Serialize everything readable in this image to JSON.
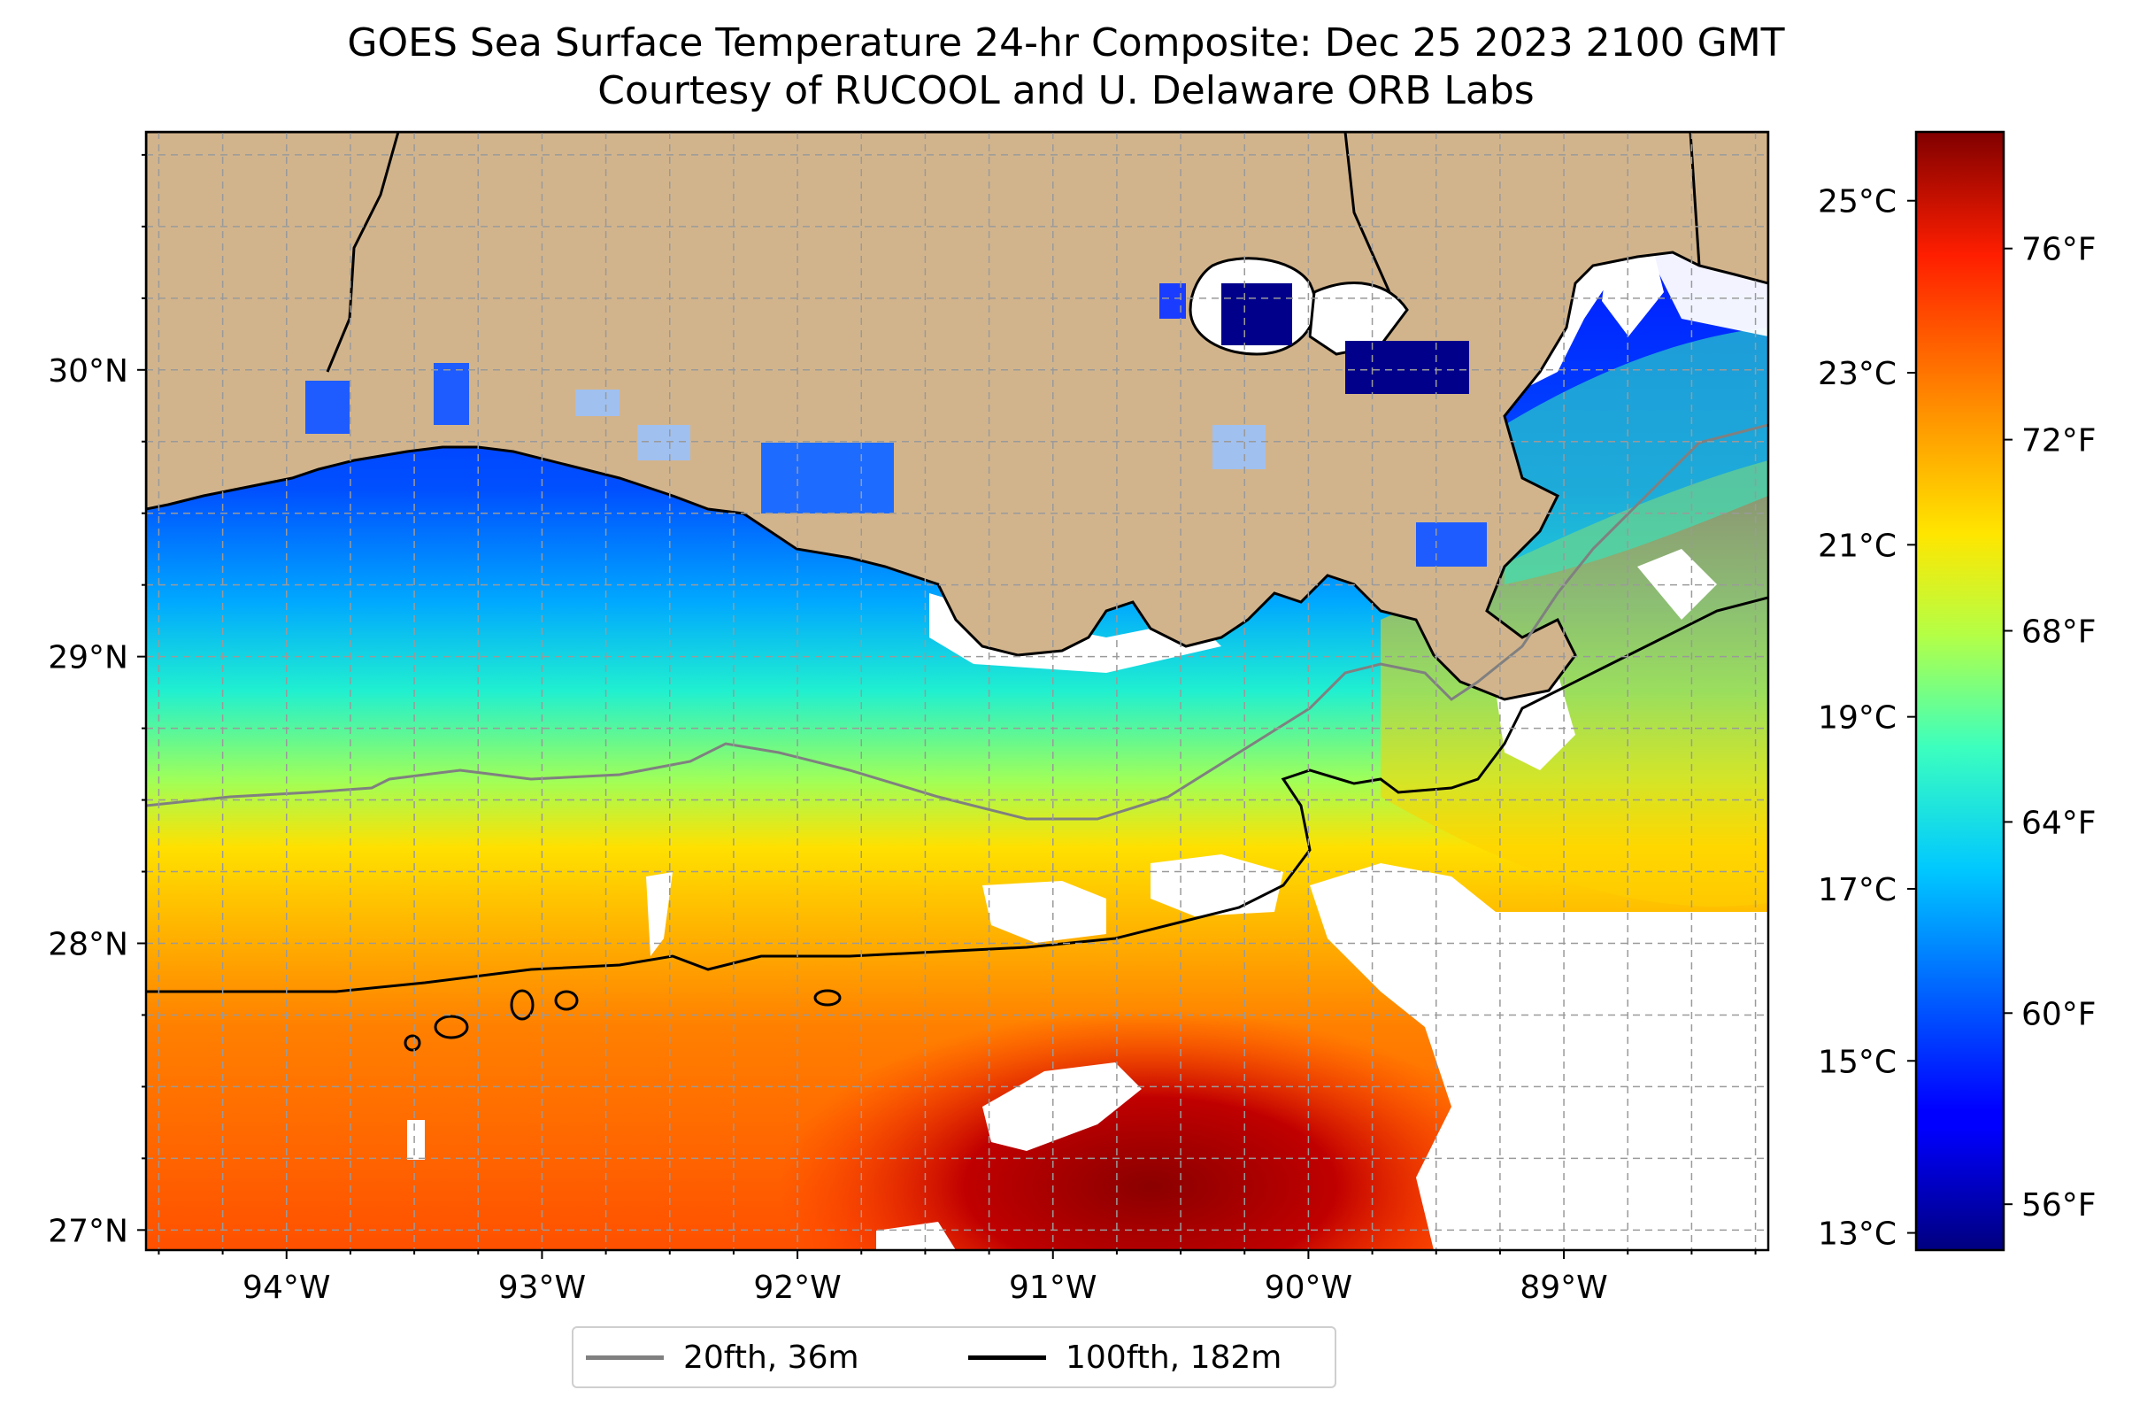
{
  "title": {
    "line1": "GOES Sea Surface Temperature 24-hr Composite: Dec 25 2023 2100 GMT",
    "line2": "Courtesy of RUCOOL and U. Delaware ORB Labs"
  },
  "map": {
    "extent": {
      "lon": [
        -94.55,
        -88.2
      ],
      "lat": [
        26.93,
        30.83
      ]
    },
    "lon_ticks": [
      {
        "value": -94,
        "label": "94°W"
      },
      {
        "value": -93,
        "label": "93°W"
      },
      {
        "value": -92,
        "label": "92°W"
      },
      {
        "value": -91,
        "label": "91°W"
      },
      {
        "value": -90,
        "label": "90°W"
      },
      {
        "value": -89,
        "label": "89°W"
      }
    ],
    "lat_ticks": [
      {
        "value": 30,
        "label": "30°N"
      },
      {
        "value": 29,
        "label": "29°N"
      },
      {
        "value": 28,
        "label": "28°N"
      },
      {
        "value": 27,
        "label": "27°N"
      }
    ],
    "gridlines": true,
    "land_color": "#d2b48c",
    "no_data_color": "#ffffff",
    "coastline_color": "#000000"
  },
  "contours": [
    {
      "name": "20fth, 36m",
      "color": "#808080"
    },
    {
      "name": "100fth, 182m",
      "color": "#000000"
    }
  ],
  "colorbar": {
    "colormap": "jet",
    "range_c": [
      12.8,
      25.8
    ],
    "celsius_ticks": [
      {
        "value": 13,
        "label": "13°C"
      },
      {
        "value": 15,
        "label": "15°C"
      },
      {
        "value": 17,
        "label": "17°C"
      },
      {
        "value": 19,
        "label": "19°C"
      },
      {
        "value": 21,
        "label": "21°C"
      },
      {
        "value": 23,
        "label": "23°C"
      },
      {
        "value": 25,
        "label": "25°C"
      }
    ],
    "fahrenheit_ticks": [
      {
        "value": 56,
        "label": "56°F"
      },
      {
        "value": 60,
        "label": "60°F"
      },
      {
        "value": 64,
        "label": "64°F"
      },
      {
        "value": 68,
        "label": "68°F"
      },
      {
        "value": 72,
        "label": "72°F"
      },
      {
        "value": 76,
        "label": "76°F"
      }
    ]
  },
  "legend": {
    "placement": "bottom-center"
  }
}
